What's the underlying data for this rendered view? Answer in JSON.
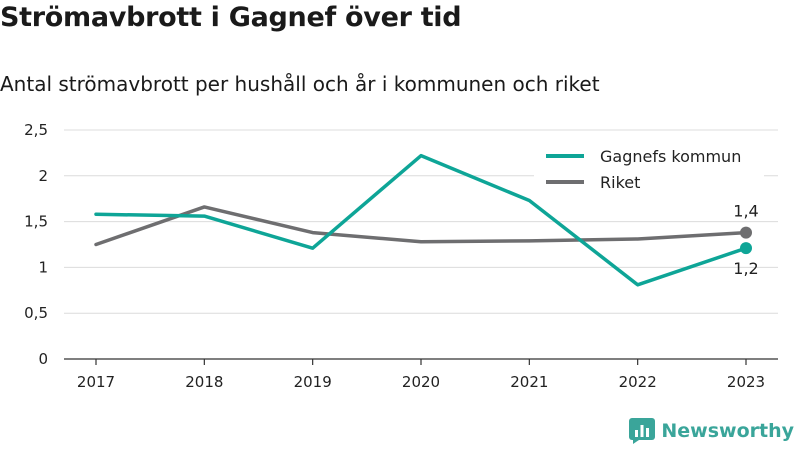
{
  "chart_data": {
    "type": "line",
    "title": "Strömavbrott i Gagnef över tid",
    "subtitle": "Antal strömavbrott per hushåll och år i kommunen och riket",
    "categories": [
      "2017",
      "2018",
      "2019",
      "2020",
      "2021",
      "2022",
      "2023"
    ],
    "series": [
      {
        "name": "Gagnefs kommun",
        "color": "#0ea597",
        "values": [
          1.58,
          1.56,
          1.21,
          2.22,
          1.73,
          0.81,
          1.21
        ],
        "end_label": "1,2"
      },
      {
        "name": "Riket",
        "color": "#6e6e70",
        "values": [
          1.25,
          1.66,
          1.38,
          1.28,
          1.29,
          1.31,
          1.38
        ],
        "end_label": "1,4"
      }
    ],
    "ylim": [
      0,
      2.5
    ],
    "yticks": [
      {
        "value": 0,
        "label": "0"
      },
      {
        "value": 0.5,
        "label": "0,5"
      },
      {
        "value": 1,
        "label": "1"
      },
      {
        "value": 1.5,
        "label": "1,5"
      },
      {
        "value": 2,
        "label": "2"
      },
      {
        "value": 2.5,
        "label": "2,5"
      }
    ],
    "grid": true,
    "legend_position": "top-right"
  },
  "brand": {
    "name": "Newsworthy",
    "icon": "bar-chart-icon",
    "color": "#3aa59a"
  }
}
